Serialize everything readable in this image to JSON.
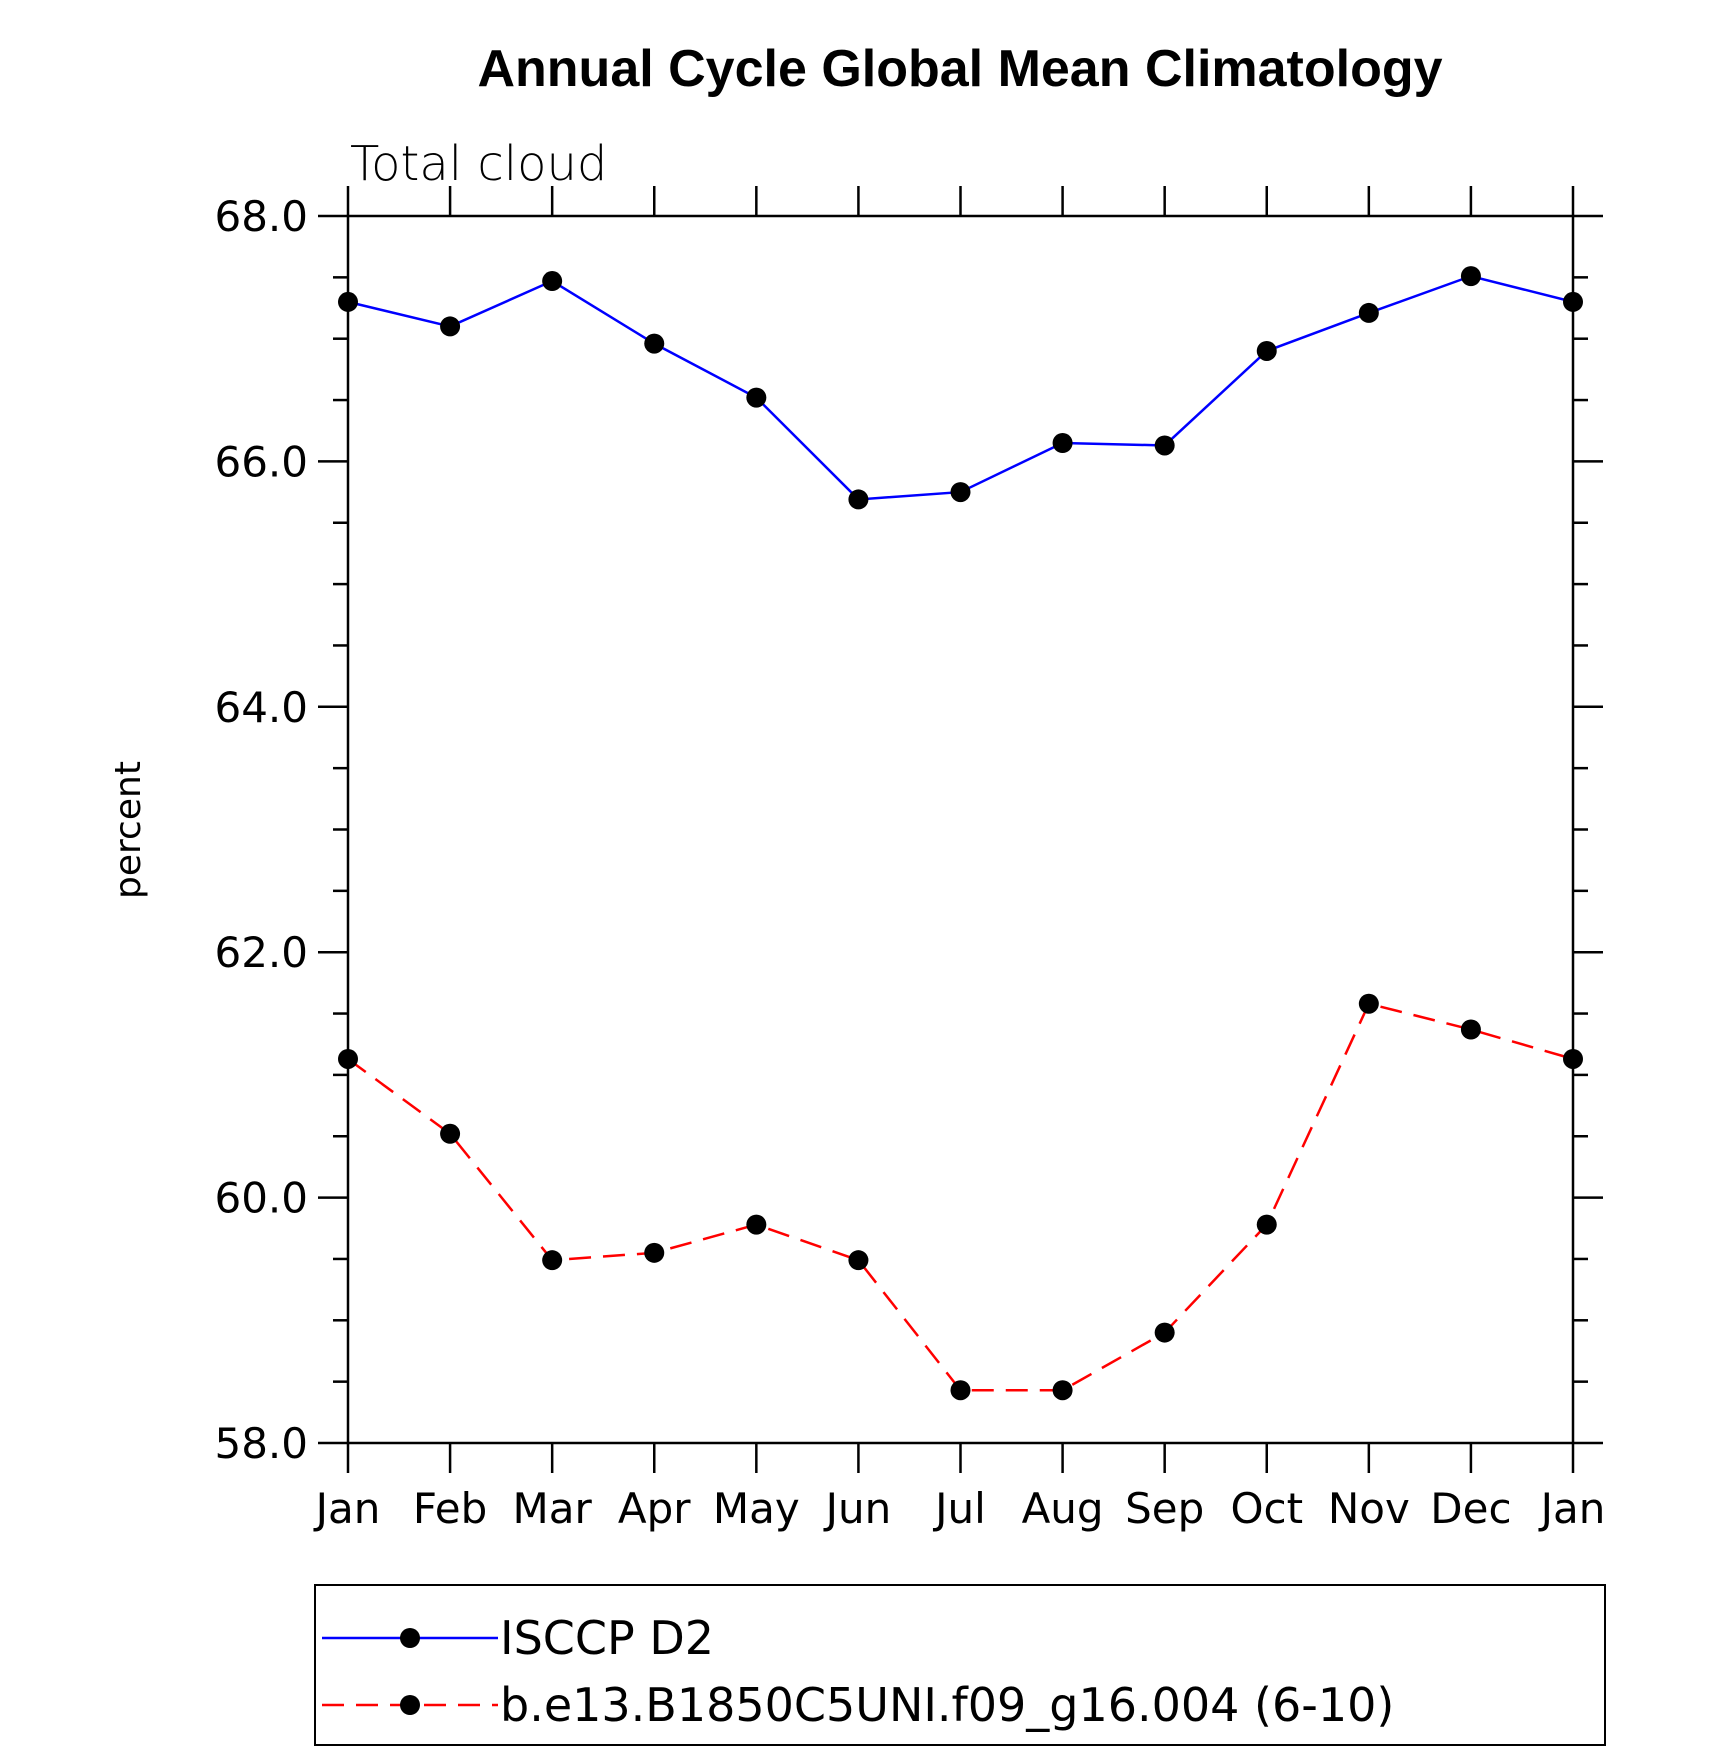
{
  "chart_data": {
    "type": "line",
    "title": "Annual Cycle Global Mean Climatology",
    "subtitle": "Total cloud",
    "xlabel": "",
    "ylabel": "percent",
    "categories": [
      "Jan",
      "Feb",
      "Mar",
      "Apr",
      "May",
      "Jun",
      "Jul",
      "Aug",
      "Sep",
      "Oct",
      "Nov",
      "Dec",
      "Jan"
    ],
    "ylim": [
      58.0,
      68.0
    ],
    "yticks": [
      "58.0",
      "60.0",
      "62.0",
      "64.0",
      "66.0",
      "68.0"
    ],
    "grid": false,
    "legend_position": "bottom",
    "series": [
      {
        "name": "ISCCP D2",
        "color": "#0000ff",
        "dash": "solid",
        "marker": "filled-circle",
        "values": [
          67.3,
          67.1,
          67.47,
          66.96,
          66.52,
          65.69,
          65.75,
          66.15,
          66.13,
          66.9,
          67.21,
          67.51,
          67.3
        ]
      },
      {
        "name": "b.e13.B1850C5UNI.f09_g16.004 (6-10)",
        "color": "#ff0000",
        "dash": "dashed",
        "marker": "filled-circle",
        "values": [
          61.13,
          60.52,
          59.49,
          59.55,
          59.78,
          59.49,
          58.43,
          58.43,
          58.9,
          59.78,
          61.58,
          61.37,
          61.13
        ]
      }
    ]
  }
}
